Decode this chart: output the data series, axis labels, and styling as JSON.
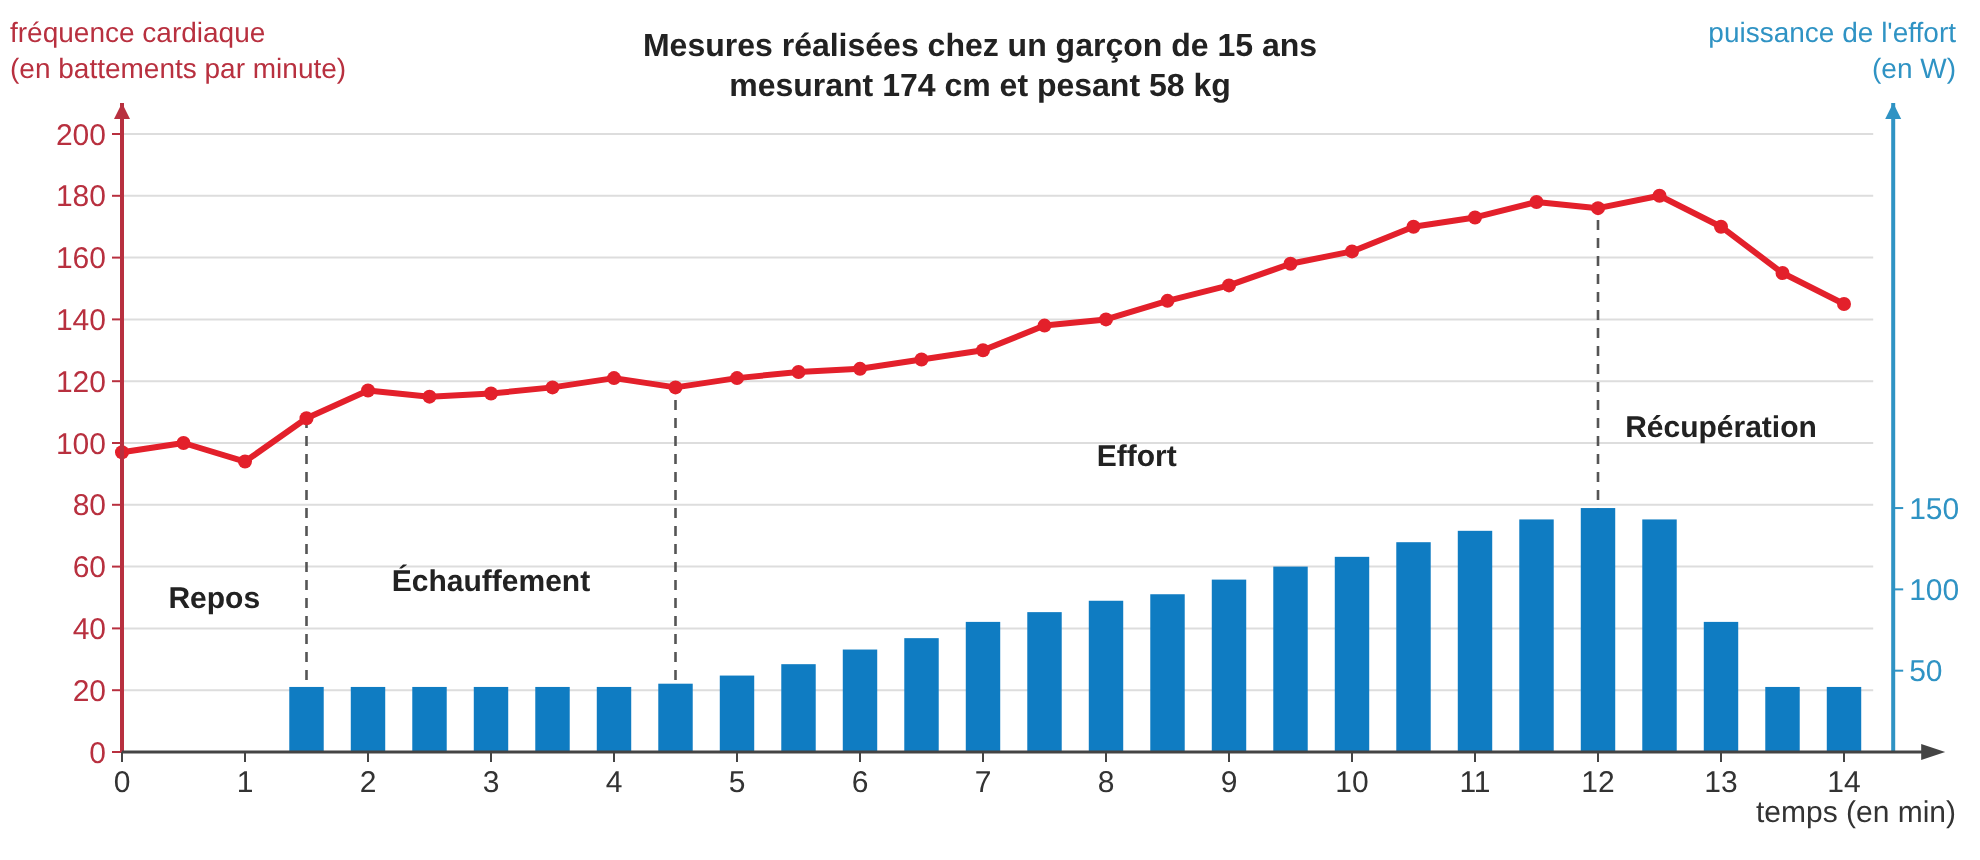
{
  "chart_data": {
    "type": "line",
    "title": "Mesures réalisées chez un garçon de 15 ans\nmesurant 174 cm et pesant 58 kg",
    "ylabel": "fréquence cardiaque\n(en battements par minute)",
    "y2label": "puissance de l'effort\n(en W)",
    "xlabel": "temps (en min)",
    "xlim": [
      0,
      14.4
    ],
    "xticks": [
      0,
      1,
      2,
      3,
      4,
      5,
      6,
      7,
      8,
      9,
      10,
      11,
      12,
      13,
      14
    ],
    "ylim": [
      0,
      210
    ],
    "yticks": [
      0,
      20,
      40,
      60,
      80,
      100,
      120,
      140,
      160,
      180,
      200
    ],
    "y2lim": [
      0,
      399
    ],
    "y2ticks": [
      50,
      100,
      150
    ],
    "grid": "y",
    "series": [
      {
        "type": "bar",
        "axis": "y2",
        "color": "#0f7cc2",
        "x": [
          1.5,
          2,
          2.5,
          3,
          3.5,
          4,
          4.5,
          5,
          5.5,
          6,
          6.5,
          7,
          7.5,
          8,
          8.5,
          9,
          9.5,
          10,
          10.5,
          11,
          11.5,
          12,
          12.5,
          13,
          13.5,
          14
        ],
        "values": [
          40,
          40,
          40,
          40,
          40,
          40,
          42,
          47,
          54,
          63,
          70,
          80,
          86,
          93,
          97,
          106,
          114,
          120,
          129,
          136,
          143,
          150,
          143,
          80,
          40,
          40
        ]
      },
      {
        "color": "#e3202b",
        "marker": "circle",
        "line_style": "solid",
        "x": [
          0,
          0.5,
          1,
          1.5,
          2,
          2.5,
          3,
          3.5,
          4,
          4.5,
          5,
          5.5,
          6,
          6.5,
          7,
          7.5,
          8,
          8.5,
          9,
          9.5,
          10,
          10.5,
          11,
          11.5,
          12,
          12.5,
          13,
          13.5,
          14
        ],
        "values": [
          97,
          100,
          94,
          108,
          117,
          115,
          116,
          118,
          121,
          118,
          121,
          123,
          124,
          127,
          130,
          138,
          140,
          146,
          151,
          158,
          162,
          170,
          173,
          178,
          176,
          180,
          170,
          155,
          145
        ]
      }
    ],
    "ref_lines": [
      {
        "axis": "x",
        "value": 1.5,
        "line_style": "dashed",
        "color": "#555555"
      },
      {
        "axis": "x",
        "value": 4.5,
        "line_style": "dashed",
        "color": "#555555"
      },
      {
        "axis": "x",
        "value": 12,
        "line_style": "dashed",
        "color": "#555555"
      }
    ],
    "annotations": [
      "Repos",
      "Échauffement",
      "Effort",
      "Récupération"
    ]
  }
}
